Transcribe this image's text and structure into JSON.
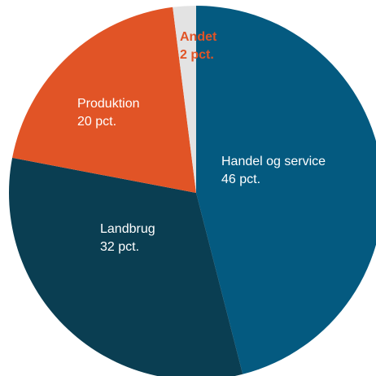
{
  "chart_data": {
    "type": "pie",
    "title": "",
    "slices": [
      {
        "name": "Handel og service",
        "value": 46,
        "value_label": "46 pct.",
        "color": "#045a80",
        "label_color": "#ffffff"
      },
      {
        "name": "Landbrug",
        "value": 32,
        "value_label": "32 pct.",
        "color": "#0a3e52",
        "label_color": "#ffffff"
      },
      {
        "name": "Produktion",
        "value": 20,
        "value_label": "20 pct.",
        "color": "#e15426",
        "label_color": "#ffffff"
      },
      {
        "name": "Andet",
        "value": 2,
        "value_label": "2 pct.",
        "color": "#e3e3e3",
        "label_color": "#e15426"
      }
    ],
    "start_direction": "top",
    "order": "clockwise",
    "legend": "none",
    "labels": "inside"
  }
}
